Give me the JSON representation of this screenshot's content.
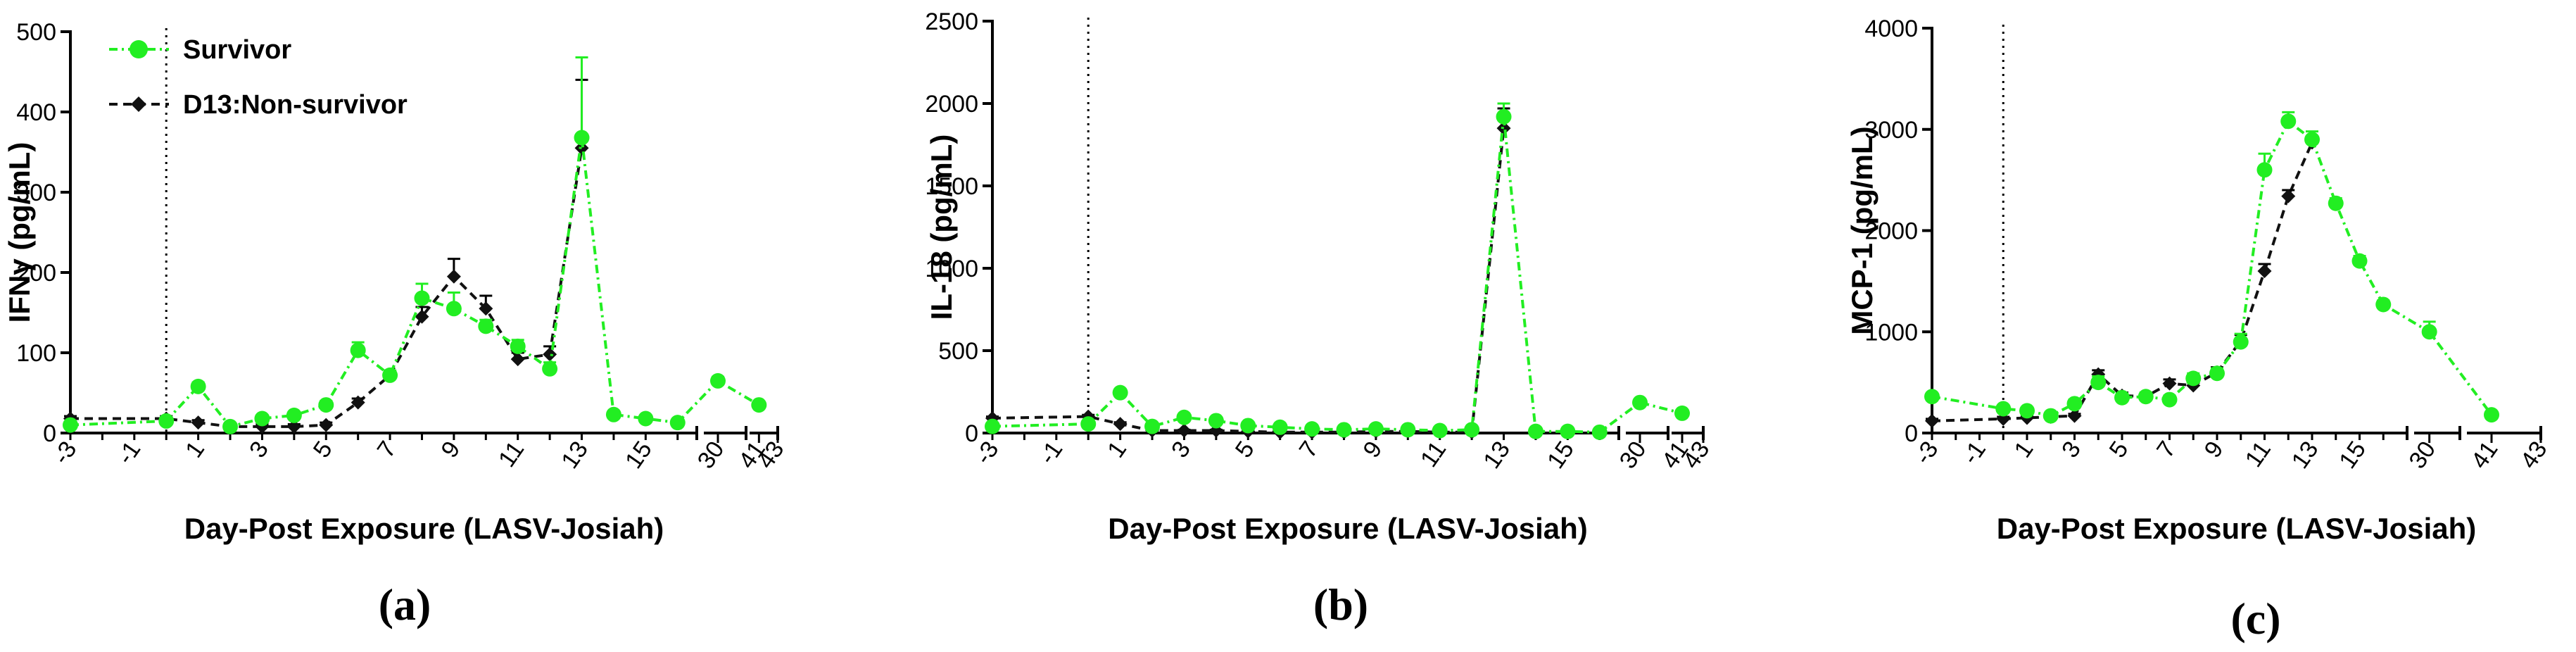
{
  "colors": {
    "survivor": "#22ee22",
    "non_survivor": "#111111",
    "axis": "#000000"
  },
  "legend": [
    {
      "name": "Survivor",
      "marker": "circle",
      "color": "#22ee22"
    },
    {
      "name": "D13:Non-survivor",
      "marker": "diamond",
      "color": "#111111"
    }
  ],
  "chart_data": [
    {
      "type": "line",
      "panel_label": "(a)",
      "ylabel": "IFNγ (pg/mL)",
      "xlabel": "Day-Post Exposure (LASV-Josiah)",
      "ylim": [
        0,
        500
      ],
      "yticks": [
        0,
        100,
        200,
        300,
        400,
        500
      ],
      "xtick_labels": [
        "-3",
        "-1",
        "1",
        "3",
        "5",
        "7",
        "9",
        "11",
        "13",
        "15",
        "30",
        "41",
        "43"
      ],
      "exposure_day": 0,
      "axis_breaks": [
        "after 16",
        "after 31"
      ],
      "legend": "top-left",
      "series": [
        {
          "name": "Survivor",
          "marker": "circle",
          "color": "#22ee22",
          "x": [
            -3,
            0,
            1,
            2,
            3,
            4,
            5,
            6,
            7,
            8,
            9,
            10,
            11,
            12,
            13,
            14,
            15,
            16,
            30,
            41
          ],
          "values": [
            10,
            15,
            58,
            8,
            18,
            22,
            35,
            103,
            72,
            168,
            155,
            133,
            108,
            80,
            368,
            23,
            18,
            13,
            65,
            35
          ],
          "err": [
            3,
            3,
            5,
            3,
            3,
            4,
            5,
            10,
            6,
            18,
            20,
            8,
            8,
            8,
            100,
            3,
            3,
            3,
            5,
            3
          ]
        },
        {
          "name": "D13:Non-survivor",
          "marker": "diamond",
          "color": "#111111",
          "x": [
            -3,
            0,
            1,
            2,
            3,
            4,
            5,
            6,
            7,
            8,
            9,
            10,
            11,
            12,
            13
          ],
          "values": [
            18,
            18,
            13,
            8,
            8,
            8,
            10,
            38,
            72,
            145,
            195,
            155,
            92,
            98,
            355
          ],
          "err": [
            3,
            3,
            3,
            3,
            3,
            3,
            3,
            5,
            5,
            12,
            22,
            16,
            8,
            10,
            85
          ]
        }
      ]
    },
    {
      "type": "line",
      "panel_label": "(b)",
      "ylabel": "IL-18 (pg/mL)",
      "xlabel": "Day-Post Exposure (LASV-Josiah)",
      "ylim": [
        0,
        2500
      ],
      "yticks": [
        0,
        500,
        1000,
        1500,
        2000,
        2500
      ],
      "xtick_labels": [
        "-3",
        "-1",
        "1",
        "3",
        "5",
        "7",
        "9",
        "11",
        "13",
        "15",
        "30",
        "41",
        "43"
      ],
      "exposure_day": 0,
      "axis_breaks": [
        "after 16",
        "after 31"
      ],
      "series": [
        {
          "name": "Survivor",
          "marker": "circle",
          "color": "#22ee22",
          "x": [
            -3,
            0,
            1,
            2,
            3,
            4,
            5,
            6,
            7,
            8,
            9,
            10,
            11,
            12,
            13,
            14,
            15,
            16,
            30,
            41
          ],
          "values": [
            40,
            55,
            245,
            40,
            95,
            75,
            45,
            35,
            25,
            20,
            25,
            20,
            15,
            20,
            1920,
            10,
            10,
            5,
            185,
            120
          ],
          "err": [
            10,
            10,
            20,
            10,
            15,
            10,
            10,
            10,
            10,
            10,
            10,
            10,
            10,
            10,
            80,
            5,
            5,
            5,
            20,
            15
          ]
        },
        {
          "name": "D13:Non-survivor",
          "marker": "diamond",
          "color": "#111111",
          "x": [
            -3,
            0,
            1,
            2,
            3,
            4,
            5,
            6,
            7,
            8,
            9,
            10,
            11,
            12,
            13
          ],
          "values": [
            90,
            100,
            55,
            15,
            15,
            15,
            10,
            5,
            5,
            5,
            10,
            10,
            5,
            5,
            1850
          ],
          "err": [
            10,
            10,
            10,
            5,
            5,
            5,
            5,
            5,
            5,
            5,
            5,
            5,
            5,
            5,
            120
          ]
        }
      ]
    },
    {
      "type": "line",
      "panel_label": "(c)",
      "ylabel": "MCP-1 (pg/mL)",
      "xlabel": "Day-Post Exposure (LASV-Josiah)",
      "ylim": [
        0,
        4000
      ],
      "yticks": [
        0,
        1000,
        2000,
        3000,
        4000
      ],
      "xtick_labels": [
        "-3",
        "-1",
        "1",
        "3",
        "5",
        "7",
        "9",
        "11",
        "13",
        "15",
        "30",
        "41",
        "43"
      ],
      "exposure_day": 0,
      "axis_breaks": [
        "after 17",
        "after 31"
      ],
      "series": [
        {
          "name": "Survivor",
          "marker": "circle",
          "color": "#22ee22",
          "x": [
            -3,
            0,
            1,
            2,
            3,
            4,
            5,
            6,
            7,
            8,
            9,
            10,
            11,
            12,
            13,
            14,
            15,
            16,
            30,
            41
          ],
          "values": [
            360,
            240,
            220,
            170,
            290,
            500,
            350,
            360,
            330,
            540,
            590,
            900,
            2600,
            3080,
            2900,
            2270,
            1700,
            1270,
            1000,
            180
          ],
          "err": [
            30,
            30,
            30,
            30,
            40,
            60,
            40,
            40,
            40,
            50,
            50,
            80,
            160,
            90,
            80,
            50,
            50,
            40,
            100,
            30
          ]
        },
        {
          "name": "D13:Non-survivor",
          "marker": "diamond",
          "color": "#111111",
          "x": [
            -3,
            0,
            1,
            2,
            3,
            4,
            5,
            6,
            7,
            8,
            9,
            10,
            11,
            12,
            13
          ],
          "values": [
            120,
            140,
            150,
            160,
            170,
            580,
            370,
            360,
            490,
            470,
            600,
            910,
            1600,
            2340,
            2870
          ],
          "err": [
            20,
            20,
            20,
            20,
            20,
            40,
            30,
            30,
            40,
            40,
            50,
            60,
            70,
            60,
            60
          ]
        }
      ]
    }
  ]
}
